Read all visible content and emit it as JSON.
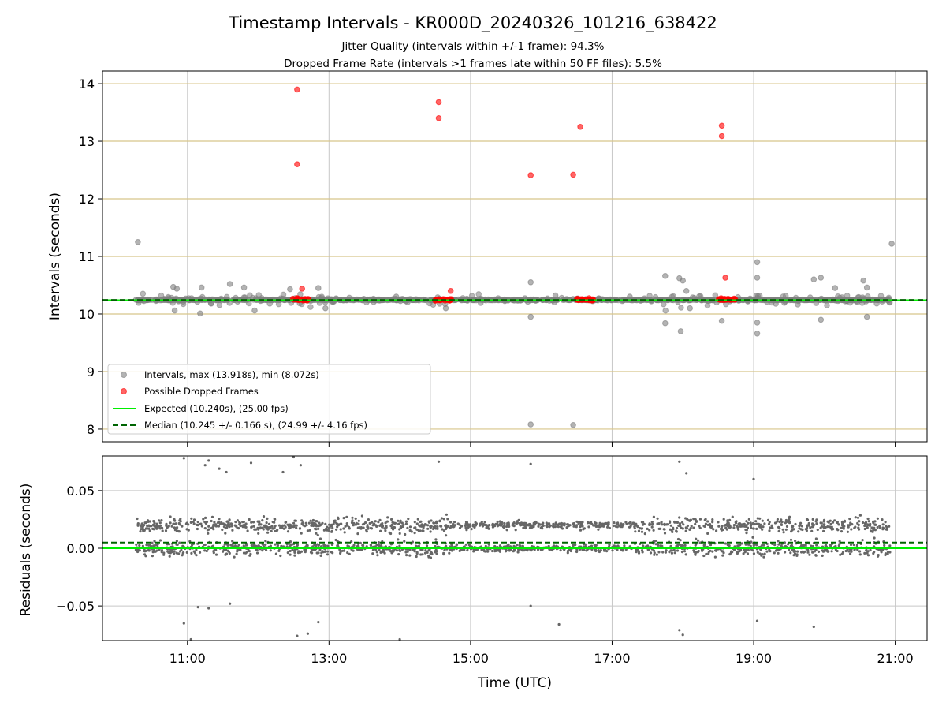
{
  "figure": {
    "title": "Timestamp Intervals - KR000D_20240326_101216_638422",
    "subtitle_1": "Jitter Quality (intervals within +/-1 frame): 94.3%",
    "subtitle_2": "Dropped Frame Rate (intervals >1 frames late within 50 FF files): 5.5%"
  },
  "colors": {
    "intervals": "#808080",
    "dropped": "#ff0000",
    "expected": "#00ee00",
    "median": "#006400",
    "h_grid_top": "#d8c58a",
    "grid": "#c8c8c8",
    "residuals": "#666666"
  },
  "chart_data": [
    {
      "type": "scatter",
      "panel": "top",
      "xlabel": "",
      "ylabel": "Intervals (seconds)",
      "x_ticks": [
        "11:00",
        "13:00",
        "15:00",
        "17:00",
        "19:00",
        "21:00"
      ],
      "x_tick_hours": [
        11,
        13,
        15,
        17,
        19,
        21
      ],
      "xlim_hours": [
        9.8,
        21.45
      ],
      "ylim": [
        7.78,
        14.22
      ],
      "y_ticks": [
        8,
        9,
        10,
        11,
        12,
        13,
        14
      ],
      "y_tick_labels": [
        "8",
        "9",
        "10",
        "11",
        "12",
        "13",
        "14"
      ],
      "grid": true,
      "legend_position": "lower-left",
      "expected_line": 10.24,
      "median_line": 10.245,
      "baseline_span_hours": [
        10.27,
        20.93
      ],
      "series": [
        {
          "name": "Intervals, max (13.918s), min (8.072s)",
          "points": [
            [
              10.3,
              11.25
            ],
            [
              15.85,
              10.55
            ],
            [
              15.85,
              9.95
            ],
            [
              17.75,
              10.66
            ],
            [
              17.75,
              9.84
            ],
            [
              17.95,
              10.62
            ],
            [
              18.0,
              10.58
            ],
            [
              17.97,
              9.7
            ],
            [
              18.05,
              10.4
            ],
            [
              18.1,
              10.1
            ],
            [
              18.55,
              9.88
            ],
            [
              19.05,
              10.9
            ],
            [
              19.05,
              10.63
            ],
            [
              19.05,
              9.85
            ],
            [
              19.05,
              9.66
            ],
            [
              19.85,
              10.6
            ],
            [
              19.95,
              10.63
            ],
            [
              19.95,
              9.9
            ],
            [
              20.15,
              10.45
            ],
            [
              20.55,
              10.58
            ],
            [
              20.6,
              10.46
            ],
            [
              20.6,
              9.95
            ],
            [
              20.95,
              11.22
            ],
            [
              15.85,
              8.08
            ],
            [
              16.45,
              8.07
            ],
            [
              10.8,
              10.47
            ],
            [
              10.85,
              10.44
            ],
            [
              10.82,
              10.06
            ],
            [
              11.2,
              10.46
            ],
            [
              11.18,
              10.01
            ],
            [
              11.6,
              10.52
            ],
            [
              11.8,
              10.46
            ],
            [
              11.95,
              10.06
            ],
            [
              12.45,
              10.43
            ],
            [
              12.85,
              10.45
            ],
            [
              12.95,
              10.1
            ],
            [
              14.65,
              10.1
            ],
            [
              13.95,
              10.3
            ],
            [
              16.2,
              10.32
            ],
            [
              17.25,
              10.3
            ]
          ]
        },
        {
          "name": "Possible Dropped Frames",
          "points": [
            [
              12.55,
              13.9
            ],
            [
              12.55,
              12.6
            ],
            [
              14.55,
              13.68
            ],
            [
              14.55,
              13.4
            ],
            [
              15.85,
              12.41
            ],
            [
              16.45,
              12.42
            ],
            [
              16.55,
              13.25
            ],
            [
              18.55,
              13.27
            ],
            [
              18.55,
              13.09
            ],
            [
              18.6,
              10.63
            ],
            [
              12.62,
              10.44
            ],
            [
              14.72,
              10.4
            ],
            [
              12.5,
              10.25
            ],
            [
              12.55,
              10.25
            ],
            [
              12.6,
              10.25
            ],
            [
              12.65,
              10.25
            ],
            [
              12.7,
              10.25
            ],
            [
              14.55,
              10.25
            ],
            [
              14.6,
              10.25
            ],
            [
              14.65,
              10.25
            ],
            [
              14.7,
              10.25
            ],
            [
              16.55,
              10.25
            ],
            [
              16.6,
              10.25
            ],
            [
              16.65,
              10.25
            ],
            [
              16.7,
              10.25
            ],
            [
              18.55,
              10.25
            ],
            [
              18.6,
              10.25
            ],
            [
              18.65,
              10.25
            ],
            [
              18.7,
              10.25
            ]
          ]
        },
        {
          "name": "Expected (10.240s), (25.00 fps)",
          "kind": "hline",
          "value": 10.24
        },
        {
          "name": "Median (10.245 +/- 0.166 s), (24.99 +/- 4.16 fps)",
          "kind": "hline-dashed",
          "value": 10.245
        }
      ]
    },
    {
      "type": "scatter",
      "panel": "bottom",
      "xlabel": "Time (UTC)",
      "ylabel": "Residuals (seconds)",
      "x_ticks": [
        "11:00",
        "13:00",
        "15:00",
        "17:00",
        "19:00",
        "21:00"
      ],
      "x_tick_hours": [
        11,
        13,
        15,
        17,
        19,
        21
      ],
      "xlim_hours": [
        9.8,
        21.45
      ],
      "ylim": [
        -0.08,
        0.08
      ],
      "y_ticks": [
        -0.05,
        0.0,
        0.05
      ],
      "y_tick_labels": [
        "−0.05",
        "0.00",
        "0.05"
      ],
      "grid": true,
      "expected_line": 0.0,
      "median_line": 0.005,
      "residual_pattern": {
        "x_range_hours": [
          10.27,
          20.93
        ],
        "upper_band": 0.02,
        "lower_band": 0.0,
        "spread": 0.025,
        "point_count": 2200
      },
      "outliers": [
        [
          10.95,
          0.078
        ],
        [
          11.25,
          0.072
        ],
        [
          11.3,
          0.076
        ],
        [
          11.45,
          0.069
        ],
        [
          11.55,
          0.066
        ],
        [
          11.9,
          0.074
        ],
        [
          12.35,
          0.066
        ],
        [
          12.5,
          0.079
        ],
        [
          12.6,
          0.072
        ],
        [
          15.85,
          0.073
        ],
        [
          17.95,
          0.075
        ],
        [
          18.05,
          0.065
        ],
        [
          19.0,
          0.06
        ],
        [
          14.55,
          0.075
        ],
        [
          10.95,
          -0.065
        ],
        [
          11.15,
          -0.051
        ],
        [
          11.3,
          -0.052
        ],
        [
          11.6,
          -0.048
        ],
        [
          12.55,
          -0.076
        ],
        [
          12.7,
          -0.074
        ],
        [
          12.85,
          -0.064
        ],
        [
          14.0,
          -0.079
        ],
        [
          15.85,
          -0.05
        ],
        [
          16.25,
          -0.066
        ],
        [
          17.95,
          -0.071
        ],
        [
          18.0,
          -0.075
        ],
        [
          19.05,
          -0.063
        ],
        [
          19.85,
          -0.068
        ],
        [
          11.05,
          -0.079
        ]
      ]
    }
  ]
}
